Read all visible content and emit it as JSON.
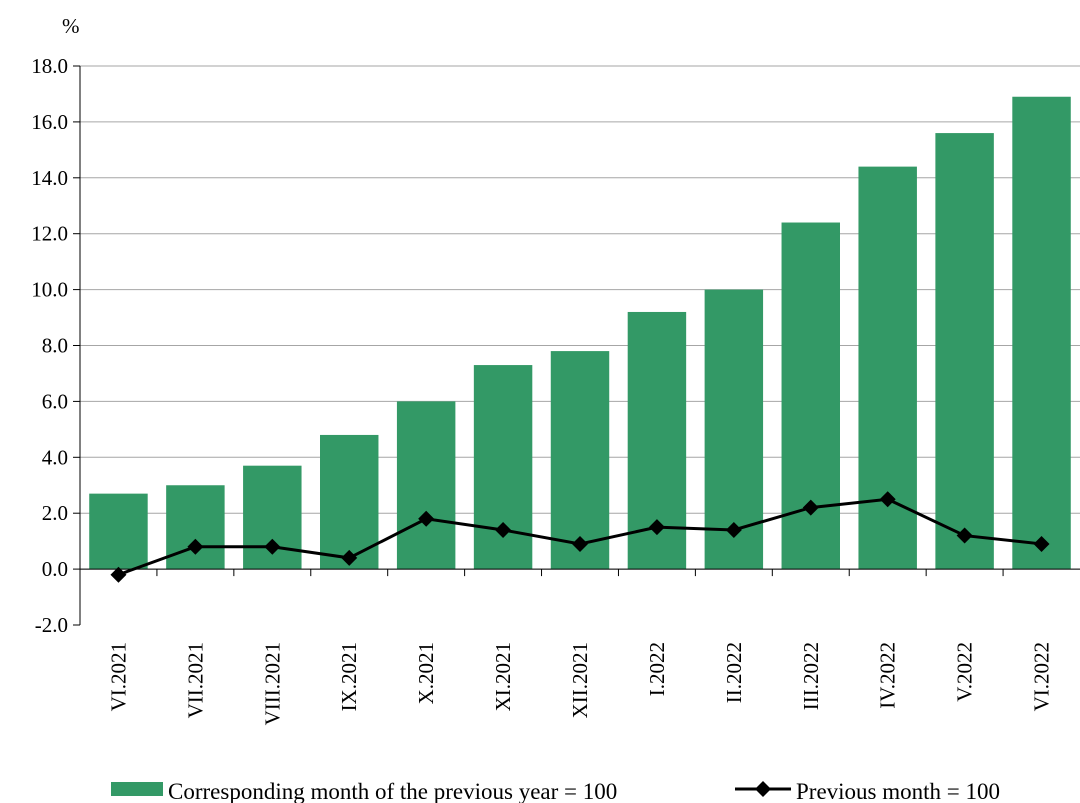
{
  "chart_data": {
    "type": "bar",
    "unit_label": "%",
    "categories": [
      "VI.2021",
      "VII.2021",
      "VIII.2021",
      "IX.2021",
      "X.2021",
      "XI.2021",
      "XII.2021",
      "I.2022",
      "II.2022",
      "III.2022",
      "IV.2022",
      "V.2022",
      "VI.2022"
    ],
    "series": [
      {
        "name": "Corresponding month of the previous year = 100",
        "type": "bar",
        "color": "#339966",
        "values": [
          2.7,
          3.0,
          3.7,
          4.8,
          6.0,
          7.3,
          7.8,
          9.2,
          10.0,
          12.4,
          14.4,
          15.6,
          16.9
        ]
      },
      {
        "name": "Previous month = 100",
        "type": "line",
        "marker": "diamond",
        "color": "#000000",
        "values": [
          -0.2,
          0.8,
          0.8,
          0.4,
          1.8,
          1.4,
          0.9,
          1.5,
          1.4,
          2.2,
          2.5,
          1.2,
          0.9
        ]
      }
    ],
    "ylim": [
      -2.0,
      18.0
    ],
    "ytick_step": 2.0,
    "ytick_labels": [
      "-2.0",
      "0.0",
      "2.0",
      "4.0",
      "6.0",
      "8.0",
      "10.0",
      "12.0",
      "14.0",
      "16.0",
      "18.0"
    ],
    "grid": true,
    "legend_position": "bottom"
  }
}
